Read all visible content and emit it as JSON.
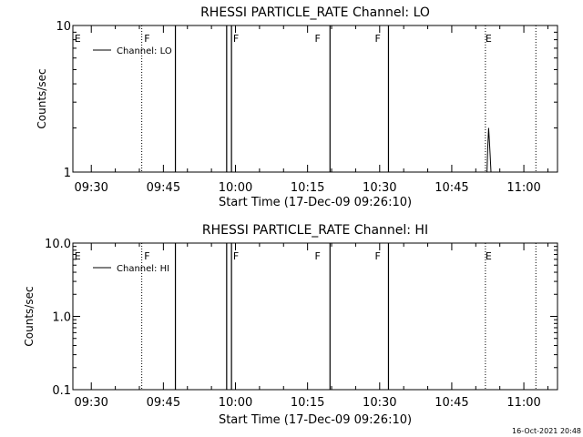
{
  "stamp": "16-Oct-2021 20:48",
  "chart_data": [
    {
      "type": "line",
      "title": "RHESSI PARTICLE_RATE Channel: LO",
      "xlabel": "Start Time (17-Dec-09 09:26:10)",
      "ylabel": "Counts/sec",
      "yscale": "log",
      "xlim": [
        "09:26:10",
        "11:07:00"
      ],
      "ylim": [
        1,
        10
      ],
      "xticks": [
        "09:30",
        "09:45",
        "10:00",
        "10:15",
        "10:30",
        "10:45",
        "11:00"
      ],
      "yticks": [
        "1",
        "10"
      ],
      "legend": {
        "placement": "top-left",
        "entries": [
          "Channel: LO"
        ]
      },
      "solid_markers": [
        "09:47:30",
        "09:58:10",
        "09:59:10",
        "10:19:40",
        "10:31:50"
      ],
      "dotted_markers": [
        "09:40:30",
        "10:52:00",
        "11:02:30"
      ],
      "annotations": [
        {
          "label": "E",
          "time": "09:26:30"
        },
        {
          "label": "F",
          "time": "09:41:00"
        },
        {
          "label": "F",
          "time": "09:59:30"
        },
        {
          "label": "F",
          "time": "10:16:30"
        },
        {
          "label": "F",
          "time": "10:29:00"
        },
        {
          "label": "E",
          "time": "10:52:00"
        }
      ],
      "series": [
        {
          "name": "Channel: LO",
          "points": [
            [
              "10:52:20",
              1.0
            ],
            [
              "10:52:30",
              1.5
            ],
            [
              "10:52:40",
              2.0
            ],
            [
              "10:52:50",
              1.6
            ],
            [
              "10:53:00",
              1.3
            ],
            [
              "10:53:10",
              1.0
            ]
          ]
        }
      ]
    },
    {
      "type": "line",
      "title": "RHESSI PARTICLE_RATE Channel: HI",
      "xlabel": "Start Time (17-Dec-09 09:26:10)",
      "ylabel": "Counts/sec",
      "yscale": "log",
      "xlim": [
        "09:26:10",
        "11:07:00"
      ],
      "ylim": [
        0.1,
        10
      ],
      "xticks": [
        "09:30",
        "09:45",
        "10:00",
        "10:15",
        "10:30",
        "10:45",
        "11:00"
      ],
      "yticks": [
        "0.1",
        "1.0",
        "10.0"
      ],
      "legend": {
        "placement": "top-left",
        "entries": [
          "Channel: HI"
        ]
      },
      "solid_markers": [
        "09:47:30",
        "09:58:10",
        "09:59:10",
        "10:19:40",
        "10:31:50"
      ],
      "dotted_markers": [
        "09:40:30",
        "10:52:00",
        "11:02:30"
      ],
      "annotations": [
        {
          "label": "E",
          "time": "09:26:30"
        },
        {
          "label": "F",
          "time": "09:41:00"
        },
        {
          "label": "F",
          "time": "09:59:30"
        },
        {
          "label": "F",
          "time": "10:16:30"
        },
        {
          "label": "F",
          "time": "10:29:00"
        },
        {
          "label": "E",
          "time": "10:52:00"
        }
      ],
      "series": [
        {
          "name": "Channel: HI",
          "points": []
        }
      ]
    }
  ]
}
